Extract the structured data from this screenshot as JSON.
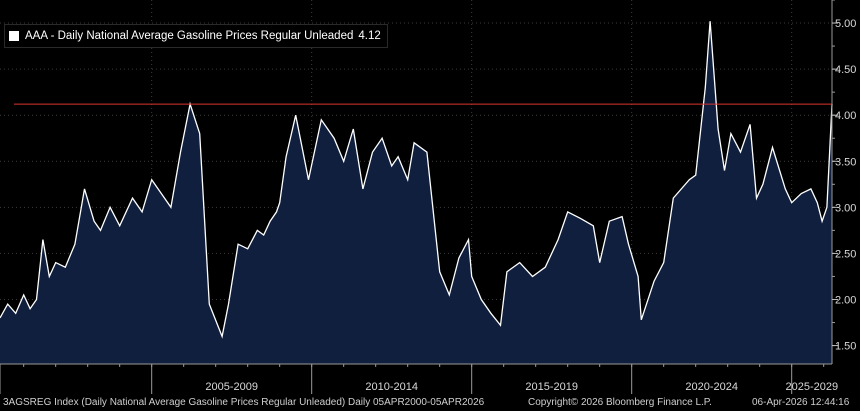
{
  "legend": {
    "label": "AAA - Daily National Average Gasoline Prices Regular Unleaded",
    "last_value": "4.12",
    "swatch_color": "#ffffff"
  },
  "footer": {
    "left": "3AGSREG Index (Daily National Average Gasoline Prices Regular Unleaded) Daily 05APR2000-05APR2026",
    "middle": "Copyright© 2026 Bloomberg Finance L.P.",
    "right": "06-Apr-2026 12:44:16"
  },
  "chart_data": {
    "type": "area",
    "title": "",
    "xlabel": "",
    "ylabel": "",
    "ylim": [
      1.3,
      5.25
    ],
    "y_ticks": [
      "1.50",
      "2.00",
      "2.50",
      "3.00",
      "3.50",
      "4.00",
      "4.50",
      "5.00"
    ],
    "x_periods": [
      "2005-2009",
      "2010-2014",
      "2015-2019",
      "2020-2024",
      "2025-2029"
    ],
    "x_range": [
      2000.26,
      2026.26
    ],
    "reference_line": {
      "value": 4.12,
      "color": "#d9352f"
    },
    "fill_color": "#0f1f3d",
    "line_color": "#ffffff",
    "series": [
      {
        "x": [
          2000.26,
          2000.5,
          2000.75,
          2001.0,
          2001.2,
          2001.4,
          2001.6,
          2001.8,
          2002.0,
          2002.3,
          2002.6,
          2002.9,
          2003.2,
          2003.4,
          2003.7,
          2004.0,
          2004.4,
          2004.7,
          2005.0,
          2005.3,
          2005.6,
          2005.9,
          2006.2,
          2006.5,
          2006.8,
          2007.2,
          2007.4,
          2007.7,
          2008.0,
          2008.3,
          2008.5,
          2008.7,
          2008.9,
          2009.0,
          2009.2,
          2009.5,
          2009.9,
          2010.3,
          2010.7,
          2011.0,
          2011.3,
          2011.6,
          2011.9,
          2012.2,
          2012.5,
          2012.7,
          2013.0,
          2013.2,
          2013.6,
          2014.0,
          2014.3,
          2014.6,
          2014.9,
          2015.0,
          2015.3,
          2015.6,
          2015.9,
          2016.1,
          2016.5,
          2016.9,
          2017.3,
          2017.7,
          2018.0,
          2018.4,
          2018.8,
          2019.0,
          2019.3,
          2019.7,
          2019.9,
          2020.2,
          2020.3,
          2020.7,
          2021.0,
          2021.3,
          2021.8,
          2022.0,
          2022.3,
          2022.45,
          2022.7,
          2022.9,
          2023.1,
          2023.4,
          2023.7,
          2023.9,
          2024.1,
          2024.4,
          2024.8,
          2025.0,
          2025.3,
          2025.6,
          2025.8,
          2025.95,
          2026.1,
          2026.26
        ],
        "y": [
          1.8,
          1.95,
          1.85,
          2.05,
          1.9,
          2.0,
          2.65,
          2.25,
          2.4,
          2.35,
          2.6,
          3.2,
          2.85,
          2.75,
          3.0,
          2.8,
          3.1,
          2.95,
          3.3,
          3.15,
          3.0,
          3.6,
          4.12,
          3.8,
          1.95,
          1.6,
          1.95,
          2.6,
          2.55,
          2.75,
          2.7,
          2.85,
          2.95,
          3.05,
          3.55,
          4.0,
          3.3,
          3.95,
          3.75,
          3.5,
          3.85,
          3.2,
          3.6,
          3.75,
          3.45,
          3.55,
          3.3,
          3.7,
          3.6,
          2.3,
          2.05,
          2.45,
          2.65,
          2.25,
          2.0,
          1.85,
          1.72,
          2.3,
          2.4,
          2.25,
          2.35,
          2.65,
          2.95,
          2.88,
          2.8,
          2.4,
          2.85,
          2.9,
          2.6,
          2.25,
          1.78,
          2.2,
          2.4,
          3.1,
          3.3,
          3.35,
          4.3,
          5.02,
          3.85,
          3.4,
          3.8,
          3.6,
          3.9,
          3.1,
          3.25,
          3.65,
          3.2,
          3.05,
          3.15,
          3.2,
          3.05,
          2.85,
          3.0,
          4.12
        ]
      }
    ]
  }
}
